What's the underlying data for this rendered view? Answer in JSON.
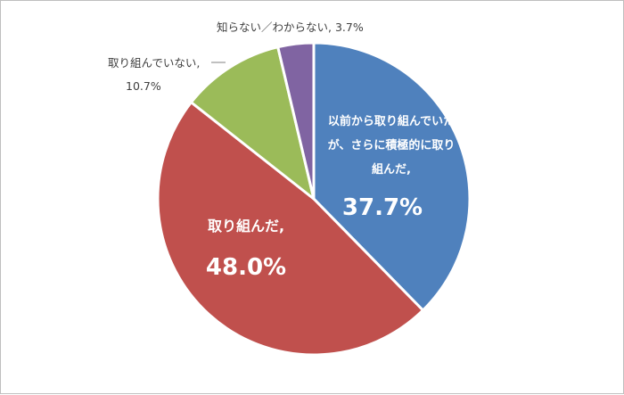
{
  "chart_data": {
    "type": "pie",
    "start_angle_deg": 0,
    "direction": "clockwise",
    "slices": [
      {
        "label_lines": [
          "以前から取り組んでいた",
          "が、さらに積極的に取り",
          "組んだ,"
        ],
        "value_text": "37.7%",
        "value": 37.7,
        "color": "#4f81bd"
      },
      {
        "label_lines": [
          "取り組んだ,"
        ],
        "value_text": "48.0%",
        "value": 48.0,
        "color": "#c0504d"
      },
      {
        "label_lines": [
          "取り組んでいない,"
        ],
        "value_text": "10.7%",
        "value": 10.7,
        "color": "#9bbb59"
      },
      {
        "label_lines": [
          "知らない／わからない, 3.7%"
        ],
        "value_text": "",
        "value": 3.7,
        "color": "#8064a2"
      }
    ]
  }
}
